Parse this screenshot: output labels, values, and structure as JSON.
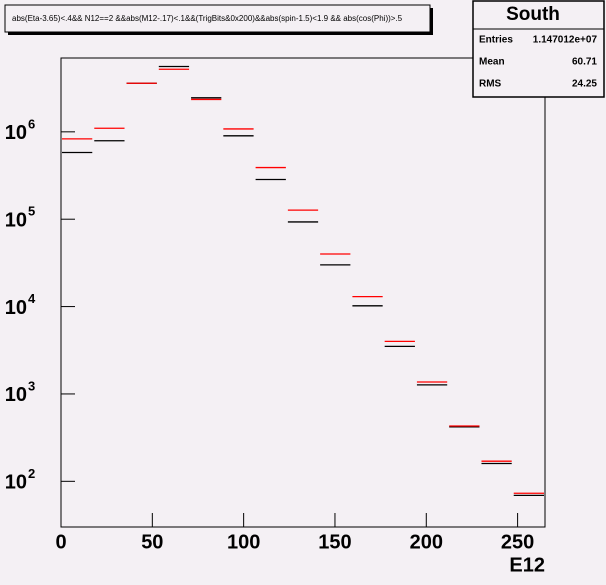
{
  "chart_data": {
    "type": "histogram",
    "title": "abs(Eta-3.65)<.4&& N12==2 &&abs(M12-.17)<.1&&(TrigBits&0x200)&&abs(spin-1.5)<1.9 && abs(cos(Phi))>.5",
    "x_label": "E12",
    "bins": [
      0,
      17.67,
      35.33,
      53,
      70.67,
      88.33,
      106,
      123.67,
      141.33,
      159,
      176.67,
      194.33,
      212,
      229.67,
      247.33,
      265
    ],
    "series": [
      {
        "color": "#000000",
        "values": [
          580000,
          790000,
          3600000,
          5600000,
          2450000,
          900000,
          285000,
          93000,
          30000,
          10200,
          3500,
          1270,
          420,
          160,
          69
        ]
      },
      {
        "color": "#ff0000",
        "values": [
          830000,
          1100000,
          3600000,
          5200000,
          2350000,
          1080000,
          390000,
          127000,
          40000,
          13000,
          4000,
          1370,
          430,
          170,
          73
        ]
      }
    ],
    "xlim": [
      0,
      265
    ],
    "xticks": [
      0,
      50,
      100,
      150,
      200,
      250
    ],
    "ylim": [
      30,
      7000000
    ],
    "yticks": [
      {
        "value": 100,
        "label": "10",
        "exponent": "2"
      },
      {
        "value": 1000,
        "label": "10",
        "exponent": "3"
      },
      {
        "value": 10000,
        "label": "10",
        "exponent": "4"
      },
      {
        "value": 100000,
        "label": "10",
        "exponent": "5"
      },
      {
        "value": 1000000,
        "label": "10",
        "exponent": "6"
      }
    ],
    "log_y": true,
    "stats": {
      "title": "South",
      "rows": [
        {
          "label": "Entries",
          "value": "1.147012e+07"
        },
        {
          "label": "Mean",
          "value": "60.71"
        },
        {
          "label": "RMS",
          "value": "24.25"
        }
      ]
    }
  }
}
